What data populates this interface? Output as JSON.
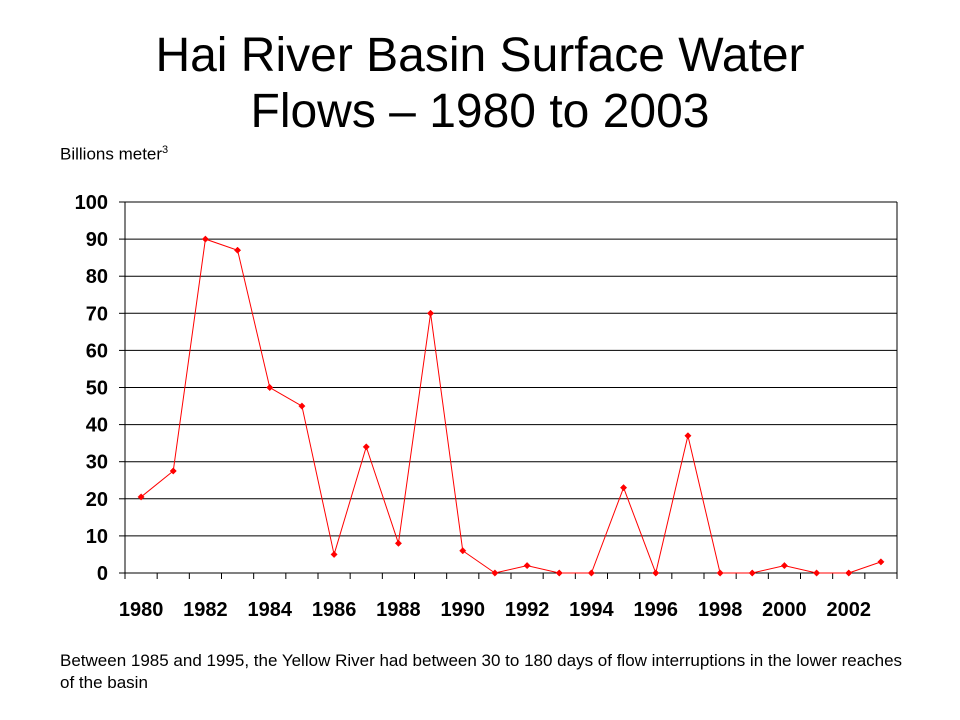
{
  "title": "Hai River Basin Surface Water Flows – 1980 to 2003",
  "title_lines": [
    "Hai River Basin Surface Water",
    "Flows – 1980 to 2003"
  ],
  "ylabel_text": "Billions meter",
  "ylabel_sup": "3",
  "caption": "Between 1985 and 1995, the Yellow River had between 30 to 180 days of flow interruptions in the lower reaches of the basin",
  "colors": {
    "series": "#ff0000",
    "grid": "#000000"
  },
  "chart_data": {
    "type": "line",
    "title": "Hai River Basin Surface Water Flows – 1980 to 2003",
    "ylabel": "Billions meter3",
    "xlabel": "",
    "x": [
      1980,
      1981,
      1982,
      1983,
      1984,
      1985,
      1986,
      1987,
      1988,
      1989,
      1990,
      1991,
      1992,
      1993,
      1994,
      1995,
      1996,
      1997,
      1998,
      1999,
      2000,
      2001,
      2002,
      2003
    ],
    "series": [
      {
        "values": [
          20.5,
          27.5,
          90,
          87,
          50,
          45,
          5,
          34,
          8,
          70,
          6,
          0,
          2,
          0,
          0,
          23,
          0,
          37,
          0,
          0,
          2,
          0,
          0,
          3
        ]
      }
    ],
    "x_tick_labels": [
      "1980",
      "1982",
      "1984",
      "1986",
      "1988",
      "1990",
      "1992",
      "1994",
      "1996",
      "1998",
      "2000",
      "2002"
    ],
    "y_tick_labels": [
      "0",
      "10",
      "20",
      "30",
      "40",
      "50",
      "60",
      "70",
      "80",
      "90",
      "100"
    ],
    "ylim": [
      0,
      100
    ],
    "grid": "horizontal",
    "legend": "none"
  }
}
